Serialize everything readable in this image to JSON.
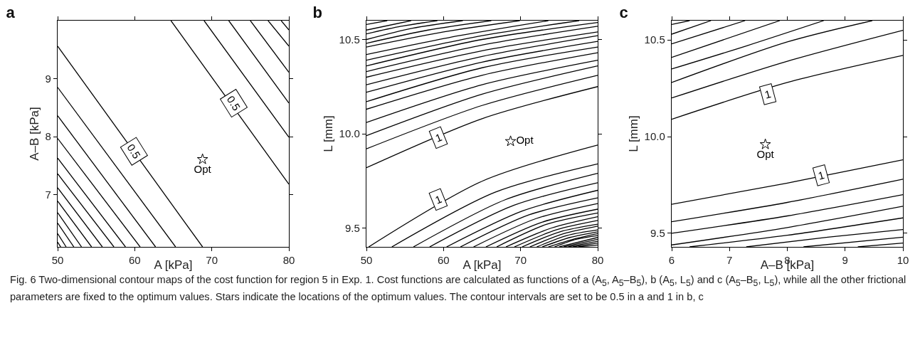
{
  "chart_data": [
    {
      "type": "line",
      "title": "a",
      "xlabel": "A [kPa]",
      "ylabel": "A–B [kPa]",
      "line_style": "solid",
      "xlim": [
        50,
        80
      ],
      "ylim": [
        6.1,
        10
      ],
      "xticks": [
        50,
        60,
        70,
        80
      ],
      "yticks": [
        7,
        8,
        9
      ],
      "annotations": [
        {
          "text": "0.5",
          "x": 59.9,
          "y": 7.75
        },
        {
          "text": "0.5",
          "x": 72.8,
          "y": 8.58
        },
        "Fig. 6 Two-dimensional contour maps of the cost function for region 5 in Exp. 1. Cost functions are calculated as functions of a (A$_{5}$, A$_{5}$–B$_{5}$), b (A$_{5}$, L$_{5}$) and c (A$_{5}$–B$_{5}$, L$_{5}$), while all the other frictional parameters are fixed to the optimum values. Stars indicate the locations of the optimum values. The contour intervals are set to be 0.5 in a and 1 in b, c"
      ],
      "series": [
        {
          "type": "line",
          "color": "#000000",
          "x": [
            50,
            68.8
          ],
          "values": [
            9.56,
            6.1
          ]
        },
        {
          "type": "line",
          "color": "#000000",
          "x": [
            50,
            65.3
          ],
          "values": [
            8.85,
            6.1
          ]
        },
        {
          "type": "line",
          "color": "#000000",
          "x": [
            50,
            62.7
          ],
          "values": [
            8.36,
            6.1
          ]
        },
        {
          "type": "line",
          "color": "#000000",
          "x": [
            50,
            60.7
          ],
          "values": [
            7.97,
            6.1
          ]
        },
        {
          "type": "line",
          "color": "#000000",
          "x": [
            50,
            58.8
          ],
          "values": [
            7.63,
            6.1
          ]
        },
        {
          "type": "line",
          "color": "#000000",
          "x": [
            50,
            57.3
          ],
          "values": [
            7.36,
            6.1
          ]
        },
        {
          "type": "line",
          "color": "#000000",
          "x": [
            50,
            55.8
          ],
          "values": [
            7.12,
            6.1
          ]
        },
        {
          "type": "line",
          "color": "#000000",
          "x": [
            50,
            54.4
          ],
          "values": [
            6.89,
            6.1
          ]
        },
        {
          "type": "line",
          "color": "#000000",
          "x": [
            50,
            53.1
          ],
          "values": [
            6.69,
            6.1
          ]
        },
        {
          "type": "line",
          "color": "#000000",
          "x": [
            50,
            52.1
          ],
          "values": [
            6.51,
            6.1
          ]
        },
        {
          "type": "line",
          "color": "#000000",
          "x": [
            50,
            51.1
          ],
          "values": [
            6.33,
            6.1
          ]
        },
        {
          "type": "line",
          "color": "#000000",
          "x": [
            50,
            50.4
          ],
          "values": [
            6.18,
            6.1
          ]
        },
        {
          "type": "line",
          "color": "#000000",
          "x": [
            64.7,
            80
          ],
          "values": [
            10,
            7.18
          ]
        },
        {
          "type": "line",
          "color": "#000000",
          "x": [
            69.0,
            80
          ],
          "values": [
            10,
            7.99
          ]
        },
        {
          "type": "line",
          "color": "#000000",
          "x": [
            72.2,
            80
          ],
          "values": [
            10,
            8.58
          ]
        },
        {
          "type": "line",
          "color": "#000000",
          "x": [
            75.0,
            80
          ],
          "values": [
            10,
            9.11
          ]
        },
        {
          "type": "line",
          "color": "#000000",
          "x": [
            77.3,
            80
          ],
          "values": [
            10,
            9.56
          ]
        },
        {
          "type": "line",
          "color": "#000000",
          "x": [
            79.0,
            80
          ],
          "values": [
            10,
            9.84
          ]
        },
        {
          "type": "scatter",
          "name": "Opt",
          "marker": "star",
          "color": "#000000",
          "x": [
            68.8
          ],
          "values": [
            7.61
          ]
        }
      ]
    },
    {
      "type": "line",
      "title": "b",
      "xlabel": "A [kPa]",
      "ylabel": "L [mm]",
      "line_style": "solid",
      "xlim": [
        50,
        80
      ],
      "ylim": [
        9.4,
        10.6
      ],
      "xticks": [
        50,
        60,
        70,
        80
      ],
      "yticks": [
        9.5,
        {
          "value": 10,
          "label": "10.0"
        },
        10.5
      ],
      "annotations": [
        {
          "text": "1",
          "x": 59.3,
          "y": 9.98
        },
        {
          "text": "1",
          "x": 59.3,
          "y": 9.65
        }
      ],
      "series": [
        {
          "type": "line",
          "color": "#000000",
          "x": [
            50,
            65,
            80
          ],
          "values": [
            9.82,
            10.08,
            10.25
          ]
        },
        {
          "type": "line",
          "color": "#000000",
          "x": [
            50,
            65,
            80
          ],
          "values": [
            9.92,
            10.15,
            10.31
          ]
        },
        {
          "type": "line",
          "color": "#000000",
          "x": [
            50,
            65,
            80
          ],
          "values": [
            9.99,
            10.21,
            10.36
          ]
        },
        {
          "type": "line",
          "color": "#000000",
          "x": [
            50,
            65,
            80
          ],
          "values": [
            10.06,
            10.26,
            10.39
          ]
        },
        {
          "type": "line",
          "color": "#000000",
          "x": [
            50,
            65,
            80
          ],
          "values": [
            10.13,
            10.31,
            10.43
          ]
        },
        {
          "type": "line",
          "color": "#000000",
          "x": [
            50,
            65,
            80
          ],
          "values": [
            10.17,
            10.35,
            10.46
          ]
        },
        {
          "type": "line",
          "color": "#000000",
          "x": [
            50,
            65,
            80
          ],
          "values": [
            10.22,
            10.38,
            10.49
          ]
        },
        {
          "type": "line",
          "color": "#000000",
          "x": [
            50,
            65,
            80
          ],
          "values": [
            10.26,
            10.41,
            10.52
          ]
        },
        {
          "type": "line",
          "color": "#000000",
          "x": [
            50,
            65,
            80
          ],
          "values": [
            10.3,
            10.44,
            10.54
          ]
        },
        {
          "type": "line",
          "color": "#000000",
          "x": [
            50,
            65,
            80
          ],
          "values": [
            10.33,
            10.47,
            10.57
          ]
        },
        {
          "type": "line",
          "color": "#000000",
          "x": [
            50,
            65,
            80
          ],
          "values": [
            10.36,
            10.5,
            10.59
          ]
        },
        {
          "type": "line",
          "color": "#000000",
          "x": [
            50,
            65,
            77.6
          ],
          "values": [
            10.39,
            10.52,
            10.6
          ]
        },
        {
          "type": "line",
          "color": "#000000",
          "x": [
            50,
            62,
            73.6
          ],
          "values": [
            10.42,
            10.52,
            10.6
          ]
        },
        {
          "type": "line",
          "color": "#000000",
          "x": [
            50,
            60,
            69.9
          ],
          "values": [
            10.46,
            10.54,
            10.6
          ]
        },
        {
          "type": "line",
          "color": "#000000",
          "x": [
            50,
            58,
            66.2
          ],
          "values": [
            10.48,
            10.55,
            10.6
          ]
        },
        {
          "type": "line",
          "color": "#000000",
          "x": [
            50,
            56,
            62.5
          ],
          "values": [
            10.5,
            10.56,
            10.6
          ]
        },
        {
          "type": "line",
          "color": "#000000",
          "x": [
            50,
            54.5,
            59.2
          ],
          "values": [
            10.53,
            10.57,
            10.6
          ]
        },
        {
          "type": "line",
          "color": "#000000",
          "x": [
            50,
            55.8
          ],
          "values": [
            10.55,
            10.6
          ]
        },
        {
          "type": "line",
          "color": "#000000",
          "x": [
            50,
            52.7
          ],
          "values": [
            10.58,
            10.6
          ]
        },
        {
          "type": "line",
          "color": "#000000",
          "x": [
            50.3,
            65.1,
            80
          ],
          "values": [
            9.4,
            9.75,
            9.94
          ]
        },
        {
          "type": "line",
          "color": "#000000",
          "x": [
            53.3,
            66.7,
            80
          ],
          "values": [
            9.4,
            9.69,
            9.84
          ]
        },
        {
          "type": "line",
          "color": "#000000",
          "x": [
            56.1,
            68.0,
            80
          ],
          "values": [
            9.4,
            9.65,
            9.79
          ]
        },
        {
          "type": "line",
          "color": "#000000",
          "x": [
            58.2,
            69.1,
            80
          ],
          "values": [
            9.4,
            9.62,
            9.74
          ]
        },
        {
          "type": "line",
          "color": "#000000",
          "x": [
            60.4,
            70.2,
            80
          ],
          "values": [
            9.4,
            9.59,
            9.7
          ]
        },
        {
          "type": "line",
          "color": "#000000",
          "x": [
            62.2,
            71.1,
            80
          ],
          "values": [
            9.4,
            9.57,
            9.66
          ]
        },
        {
          "type": "line",
          "color": "#000000",
          "x": [
            63.9,
            72.0,
            80
          ],
          "values": [
            9.4,
            9.55,
            9.63
          ]
        },
        {
          "type": "line",
          "color": "#000000",
          "x": [
            65.5,
            72.7,
            80
          ],
          "values": [
            9.4,
            9.53,
            9.6
          ]
        },
        {
          "type": "line",
          "color": "#000000",
          "x": [
            66.9,
            73.4,
            80
          ],
          "values": [
            9.4,
            9.52,
            9.58
          ]
        },
        {
          "type": "line",
          "color": "#000000",
          "x": [
            68.1,
            74.0,
            80
          ],
          "values": [
            9.4,
            9.5,
            9.56
          ]
        },
        {
          "type": "line",
          "color": "#000000",
          "x": [
            69.2,
            74.6,
            80
          ],
          "values": [
            9.4,
            9.49,
            9.54
          ]
        },
        {
          "type": "line",
          "color": "#000000",
          "x": [
            70.2,
            75.1,
            80
          ],
          "values": [
            9.4,
            9.48,
            9.52
          ]
        },
        {
          "type": "line",
          "color": "#000000",
          "x": [
            71.2,
            75.6,
            80
          ],
          "values": [
            9.4,
            9.47,
            9.51
          ]
        },
        {
          "type": "line",
          "color": "#000000",
          "x": [
            72.1,
            76.0,
            80
          ],
          "values": [
            9.4,
            9.46,
            9.49
          ]
        },
        {
          "type": "line",
          "color": "#000000",
          "x": [
            72.8,
            76.4,
            80
          ],
          "values": [
            9.4,
            9.45,
            9.48
          ]
        },
        {
          "type": "line",
          "color": "#000000",
          "x": [
            73.6,
            76.8,
            80
          ],
          "values": [
            9.4,
            9.44,
            9.47
          ]
        },
        {
          "type": "line",
          "color": "#000000",
          "x": [
            74.4,
            77.2,
            80
          ],
          "values": [
            9.4,
            9.44,
            9.46
          ]
        },
        {
          "type": "line",
          "color": "#000000",
          "x": [
            75.0,
            80
          ],
          "values": [
            9.4,
            9.45
          ]
        },
        {
          "type": "line",
          "color": "#000000",
          "x": [
            75.6,
            80
          ],
          "values": [
            9.4,
            9.44
          ]
        },
        {
          "type": "line",
          "color": "#000000",
          "x": [
            76.2,
            80
          ],
          "values": [
            9.4,
            9.43
          ]
        },
        {
          "type": "line",
          "color": "#000000",
          "x": [
            76.8,
            80
          ],
          "values": [
            9.4,
            9.42
          ]
        },
        {
          "type": "line",
          "color": "#000000",
          "x": [
            77.5,
            80
          ],
          "values": [
            9.4,
            9.41
          ]
        },
        {
          "type": "scatter",
          "name": "Opt",
          "marker": "star",
          "color": "#000000",
          "x": [
            68.7
          ],
          "values": [
            9.96
          ]
        }
      ]
    },
    {
      "type": "line",
      "title": "c",
      "xlabel": "A–B [kPa]",
      "ylabel": "L [mm]",
      "line_style": "solid",
      "xlim": [
        6,
        10
      ],
      "ylim": [
        9.43,
        10.6
      ],
      "xticks": [
        6,
        7,
        8,
        9,
        10
      ],
      "yticks": [
        9.5,
        {
          "value": 10,
          "label": "10.0"
        },
        10.5
      ],
      "annotations": [
        {
          "text": "1",
          "x": 7.66,
          "y": 10.22
        },
        {
          "text": "1",
          "x": 8.58,
          "y": 9.8
        }
      ],
      "series": [
        {
          "type": "line",
          "color": "#000000",
          "x": [
            6,
            8,
            10
          ],
          "values": [
            10.09,
            10.28,
            10.42
          ]
        },
        {
          "type": "line",
          "color": "#000000",
          "x": [
            6,
            8,
            10
          ],
          "values": [
            10.2,
            10.39,
            10.55
          ]
        },
        {
          "type": "line",
          "color": "#000000",
          "x": [
            6,
            8,
            9.47
          ],
          "values": [
            10.28,
            10.49,
            10.6
          ]
        },
        {
          "type": "line",
          "color": "#000000",
          "x": [
            6,
            7.3,
            8.63
          ],
          "values": [
            10.35,
            10.47,
            10.6
          ]
        },
        {
          "type": "line",
          "color": "#000000",
          "x": [
            6,
            7.87
          ],
          "values": [
            10.41,
            10.6
          ]
        },
        {
          "type": "line",
          "color": "#000000",
          "x": [
            6,
            7.27
          ],
          "values": [
            10.48,
            10.6
          ]
        },
        {
          "type": "line",
          "color": "#000000",
          "x": [
            6,
            6.68
          ],
          "values": [
            10.53,
            10.6
          ]
        },
        {
          "type": "line",
          "color": "#000000",
          "x": [
            6,
            6.31
          ],
          "values": [
            10.58,
            10.6
          ]
        },
        {
          "type": "line",
          "color": "#000000",
          "x": [
            6,
            8,
            10
          ],
          "values": [
            9.65,
            9.76,
            9.88
          ]
        },
        {
          "type": "line",
          "color": "#000000",
          "x": [
            6,
            8,
            10
          ],
          "values": [
            9.56,
            9.66,
            9.78
          ]
        },
        {
          "type": "line",
          "color": "#000000",
          "x": [
            6,
            8,
            10
          ],
          "values": [
            9.5,
            9.59,
            9.7
          ]
        },
        {
          "type": "line",
          "color": "#000000",
          "x": [
            6,
            8,
            10
          ],
          "values": [
            9.44,
            9.53,
            9.64
          ]
        },
        {
          "type": "line",
          "color": "#000000",
          "x": [
            6.31,
            8,
            10
          ],
          "values": [
            9.43,
            9.49,
            9.58
          ]
        },
        {
          "type": "line",
          "color": "#000000",
          "x": [
            7.29,
            8.7,
            10
          ],
          "values": [
            9.43,
            9.48,
            9.52
          ]
        },
        {
          "type": "line",
          "color": "#000000",
          "x": [
            8.28,
            10
          ],
          "values": [
            9.43,
            9.48
          ]
        },
        {
          "type": "line",
          "color": "#000000",
          "x": [
            9.22,
            10
          ],
          "values": [
            9.43,
            9.45
          ]
        },
        {
          "type": "scatter",
          "name": "Opt",
          "marker": "star",
          "color": "#000000",
          "x": [
            7.62
          ],
          "values": [
            9.96
          ]
        }
      ]
    }
  ]
}
